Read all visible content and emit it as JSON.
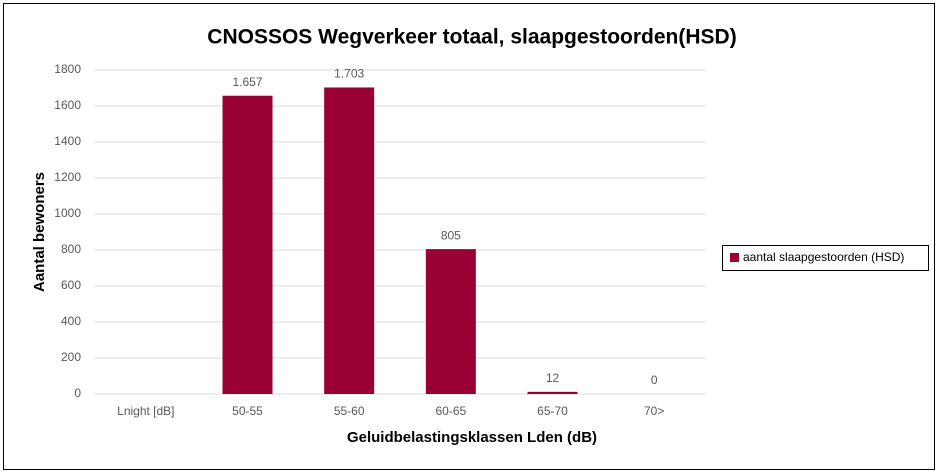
{
  "chart_data": {
    "type": "bar",
    "title": "CNOSSOS Wegverkeer totaal, slaapgestoorden(HSD)",
    "x_label": "Geluidbelastingsklassen Lden (dB)",
    "y_label": "Aantal bewoners",
    "categories": [
      "Lnight [dB]",
      "50-55",
      "55-60",
      "60-65",
      "65-70",
      "70>"
    ],
    "series": [
      {
        "name": "aantal slaapgestoorden (HSD)",
        "color": "#990033",
        "values": [
          null,
          1657,
          1703,
          805,
          12,
          0
        ],
        "value_labels": [
          null,
          "1.657",
          "1.703",
          "805",
          "12",
          "0"
        ]
      }
    ],
    "ylim": [
      0,
      1800
    ],
    "yticks": [
      0,
      200,
      400,
      600,
      800,
      1000,
      1200,
      1400,
      1600,
      1800
    ],
    "grid": true,
    "legend": "right"
  }
}
